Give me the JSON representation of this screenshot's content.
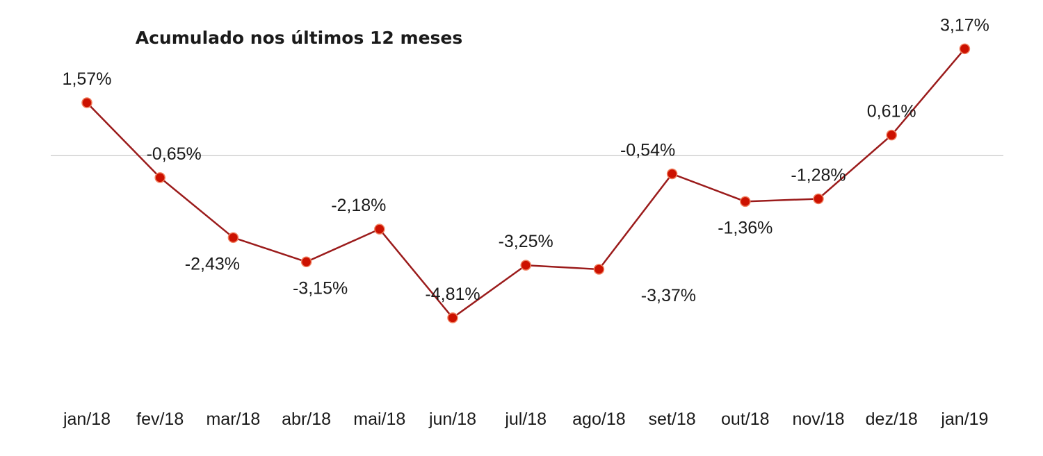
{
  "chart_data": {
    "type": "line",
    "title": "Acumulado nos últimos 12 meses",
    "xlabel": "",
    "ylabel": "",
    "categories": [
      "jan/18",
      "fev/18",
      "mar/18",
      "abr/18",
      "mai/18",
      "jun/18",
      "jul/18",
      "ago/18",
      "set/18",
      "out/18",
      "nov/18",
      "dez/18",
      "jan/19"
    ],
    "series": [
      {
        "values": [
          1.57,
          -0.65,
          -2.43,
          -3.15,
          -2.18,
          -4.81,
          -3.25,
          -3.37,
          -0.54,
          -1.36,
          -1.28,
          0.61,
          3.17
        ],
        "labels": [
          "1,57%",
          "-0,65%",
          "-2,43%",
          "-3,15%",
          "-2,18%",
          "-4,81%",
          "-3,25%",
          "-3,37%",
          "-0,54%",
          "-1,36%",
          "-1,28%",
          "0,61%",
          "3,17%"
        ],
        "line_color": "#9b1b1b",
        "marker_color": "#cc1100"
      }
    ],
    "ylim": [
      -6.5,
      4.0
    ],
    "grid": false,
    "zero_line": true,
    "zero_line_color": "#d0d0d0",
    "legend": "none"
  }
}
